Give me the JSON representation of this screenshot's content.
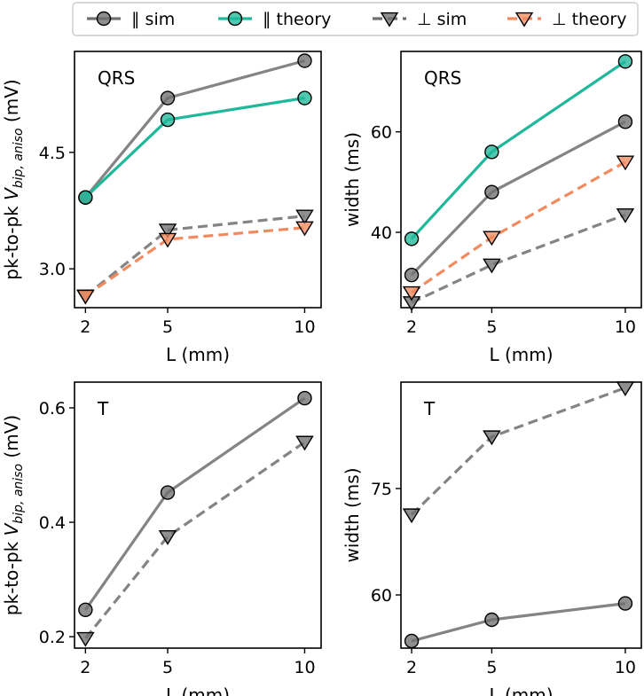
{
  "colors": {
    "sim_gray": "#6f6f6f",
    "theory_teal": "#1fb89a",
    "theory_orange": "#f28a5f",
    "axes": "#000000",
    "legend_border": "#cccccc"
  },
  "legend": {
    "items": [
      {
        "key": "par_sim",
        "label": "∥ sim",
        "marker": "circle",
        "dash": "solid",
        "color": "#6f6f6f"
      },
      {
        "key": "par_theory",
        "label": "∥ theory",
        "marker": "circle",
        "dash": "solid",
        "color": "#1fb89a"
      },
      {
        "key": "perp_sim",
        "label": "⊥ sim",
        "marker": "triangle-down",
        "dash": "dashed",
        "color": "#6f6f6f"
      },
      {
        "key": "perp_theory",
        "label": "⊥ theory",
        "marker": "triangle-down",
        "dash": "dashed",
        "color": "#f28a5f"
      }
    ]
  },
  "chart_data": [
    {
      "id": "qrs-amplitude",
      "type": "line",
      "panel_label": "QRS",
      "xlabel": "L (mm)",
      "ylabel": "pk-to-pk V_bip,aniso (mV)",
      "x_ticks": [
        2,
        5,
        10
      ],
      "y_ticks": [
        3.0,
        4.5
      ],
      "y_tick_labels": [
        "3.0",
        "4.5"
      ],
      "xlim": [
        1.6,
        10.6
      ],
      "ylim": [
        2.5,
        5.8
      ],
      "series": [
        {
          "key": "par_sim",
          "name": "∥ sim",
          "color": "#6f6f6f",
          "dash": "solid",
          "marker": "circle",
          "x": [
            2,
            5,
            10
          ],
          "values": [
            3.92,
            5.2,
            5.68
          ]
        },
        {
          "key": "par_theory",
          "name": "∥ theory",
          "color": "#1fb89a",
          "dash": "solid",
          "marker": "circle",
          "x": [
            2,
            5,
            10
          ],
          "values": [
            3.92,
            4.92,
            5.2
          ]
        },
        {
          "key": "perp_sim",
          "name": "⊥ sim",
          "color": "#6f6f6f",
          "dash": "dashed",
          "marker": "triangle-down",
          "x": [
            2,
            5,
            10
          ],
          "values": [
            2.65,
            3.5,
            3.68
          ]
        },
        {
          "key": "perp_theory",
          "name": "⊥ theory",
          "color": "#f28a5f",
          "dash": "dashed",
          "marker": "triangle-down",
          "x": [
            2,
            5,
            10
          ],
          "values": [
            2.65,
            3.38,
            3.53
          ]
        }
      ]
    },
    {
      "id": "qrs-width",
      "type": "line",
      "panel_label": "QRS",
      "xlabel": "L (mm)",
      "ylabel": "width (ms)",
      "x_ticks": [
        2,
        5,
        10
      ],
      "y_ticks": [
        40,
        60
      ],
      "y_tick_labels": [
        "40",
        "60"
      ],
      "xlim": [
        1.6,
        10.6
      ],
      "ylim": [
        25,
        76
      ],
      "series": [
        {
          "key": "par_sim",
          "name": "∥ sim",
          "color": "#6f6f6f",
          "dash": "solid",
          "marker": "circle",
          "x": [
            2,
            5,
            10
          ],
          "values": [
            31.5,
            48,
            62
          ]
        },
        {
          "key": "par_theory",
          "name": "∥ theory",
          "color": "#1fb89a",
          "dash": "solid",
          "marker": "circle",
          "x": [
            2,
            5,
            10
          ],
          "values": [
            38.7,
            56,
            74
          ]
        },
        {
          "key": "perp_sim",
          "name": "⊥ sim",
          "color": "#6f6f6f",
          "dash": "dashed",
          "marker": "triangle-down",
          "x": [
            2,
            5,
            10
          ],
          "values": [
            26,
            33.5,
            43.5
          ]
        },
        {
          "key": "perp_theory",
          "name": "⊥ theory",
          "color": "#f28a5f",
          "dash": "dashed",
          "marker": "triangle-down",
          "x": [
            2,
            5,
            10
          ],
          "values": [
            28,
            39,
            54
          ]
        }
      ]
    },
    {
      "id": "t-amplitude",
      "type": "line",
      "panel_label": "T",
      "xlabel": "L (mm)",
      "ylabel": "pk-to-pk V_bip,aniso (mV)",
      "x_ticks": [
        2,
        5,
        10
      ],
      "y_ticks": [
        0.2,
        0.4,
        0.6
      ],
      "y_tick_labels": [
        "0.2",
        "0.4",
        "0.6"
      ],
      "xlim": [
        1.6,
        10.6
      ],
      "ylim": [
        0.18,
        0.645
      ],
      "series": [
        {
          "key": "par_sim",
          "name": "∥ sim",
          "color": "#6f6f6f",
          "dash": "solid",
          "marker": "circle",
          "x": [
            2,
            5,
            10
          ],
          "values": [
            0.247,
            0.452,
            0.617
          ]
        },
        {
          "key": "perp_sim",
          "name": "⊥ sim",
          "color": "#6f6f6f",
          "dash": "dashed",
          "marker": "triangle-down",
          "x": [
            2,
            5,
            10
          ],
          "values": [
            0.197,
            0.375,
            0.54
          ]
        }
      ]
    },
    {
      "id": "t-width",
      "type": "line",
      "panel_label": "T",
      "xlabel": "L (mm)",
      "ylabel": "width (ms)",
      "x_ticks": [
        2,
        5,
        10
      ],
      "y_ticks": [
        60,
        75
      ],
      "y_tick_labels": [
        "60",
        "75"
      ],
      "xlim": [
        1.6,
        10.6
      ],
      "ylim": [
        52.5,
        90
      ],
      "series": [
        {
          "key": "par_sim",
          "name": "∥ sim",
          "color": "#6f6f6f",
          "dash": "solid",
          "marker": "circle",
          "x": [
            2,
            5,
            10
          ],
          "values": [
            53.5,
            56.5,
            58.8
          ]
        },
        {
          "key": "perp_sim",
          "name": "⊥ sim",
          "color": "#6f6f6f",
          "dash": "dashed",
          "marker": "triangle-down",
          "x": [
            2,
            5,
            10
          ],
          "values": [
            71.3,
            82.3,
            89.2
          ]
        }
      ]
    }
  ]
}
